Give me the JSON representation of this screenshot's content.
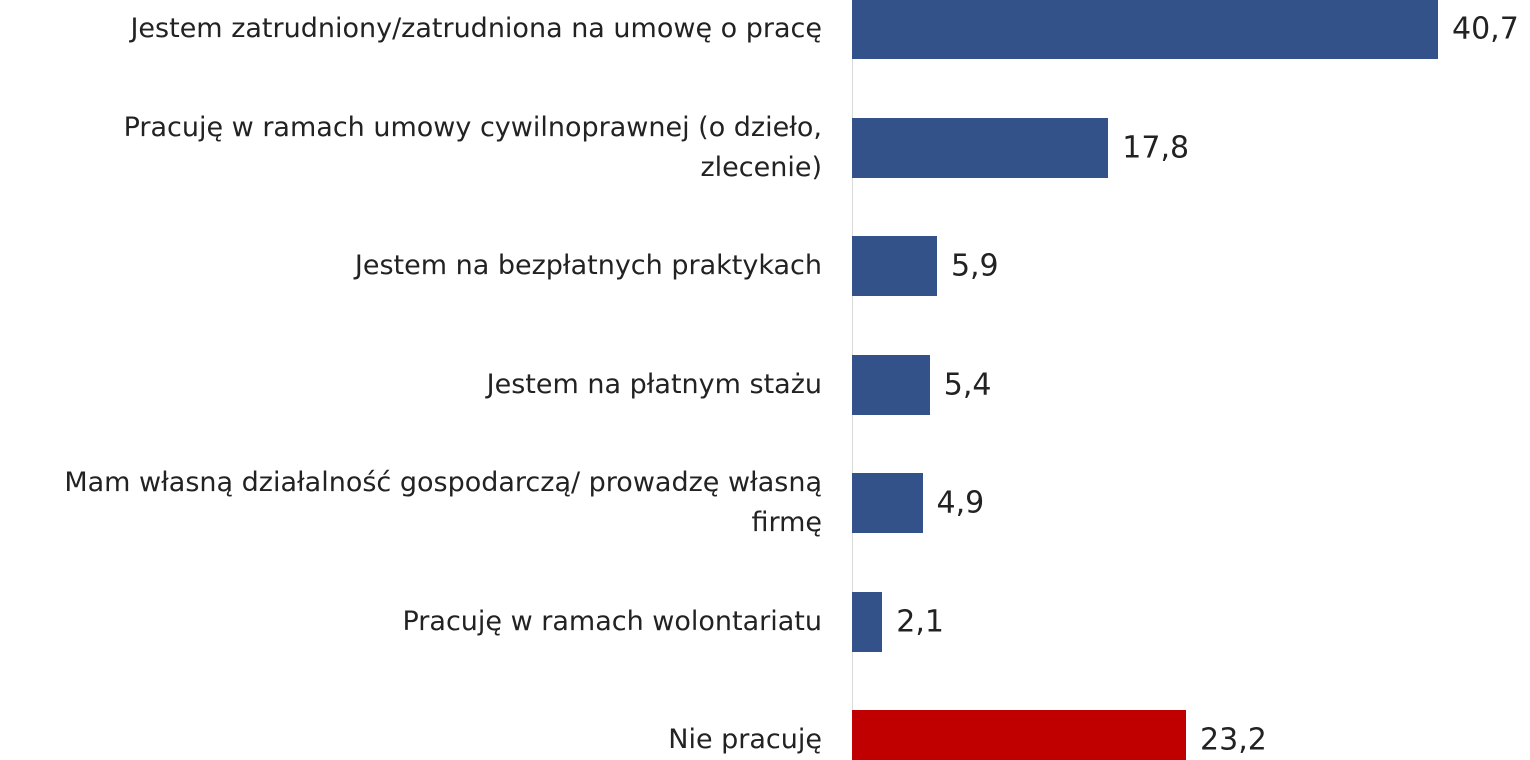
{
  "chart_data": {
    "type": "bar",
    "orientation": "horizontal",
    "categories": [
      "Jestem zatrudniony/zatrudniona na umowę o pracę",
      "Pracuję w ramach umowy cywilnoprawnej (o dzieło, zlecenie)",
      "Jestem na bezpłatnych praktykach",
      "Jestem na płatnym stażu",
      "Mam własną działalność gospodarczą/ prowadzę własną firmę",
      "Pracuję w ramach wolontariatu",
      "Nie pracuję"
    ],
    "values": [
      40.7,
      17.8,
      5.9,
      5.4,
      4.9,
      2.1,
      23.2
    ],
    "value_labels": [
      "40,7",
      "17,8",
      "5,9",
      "5,4",
      "4,9",
      "2,1",
      "23,2"
    ],
    "colors": [
      "#34528a",
      "#34528a",
      "#34528a",
      "#34528a",
      "#34528a",
      "#34528a",
      "#c00000"
    ]
  }
}
